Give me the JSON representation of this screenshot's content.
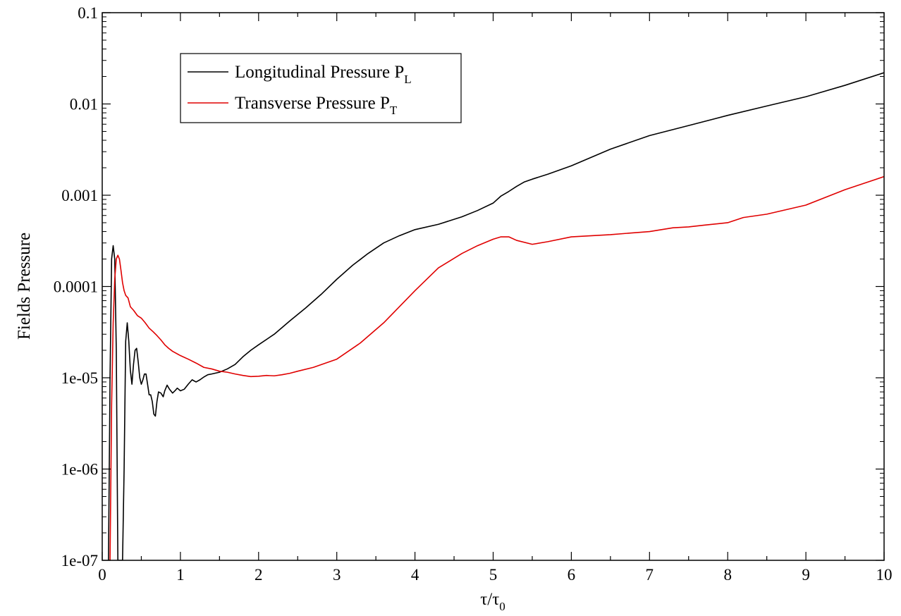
{
  "chart_data": {
    "type": "line",
    "title": "",
    "xlabel": "τ/τ",
    "xlabel_sub": "0",
    "ylabel": "Fields Pressure",
    "xlim": [
      0,
      10
    ],
    "ylim": [
      1e-07,
      0.1
    ],
    "yscale": "log",
    "grid": false,
    "legend_position": "top-left",
    "x_ticks": [
      0,
      1,
      2,
      3,
      4,
      5,
      6,
      7,
      8,
      9,
      10
    ],
    "x_tick_labels": [
      "0",
      "1",
      "2",
      "3",
      "4",
      "5",
      "6",
      "7",
      "8",
      "9",
      "10"
    ],
    "y_ticks": [
      1e-07,
      1e-06,
      1e-05,
      0.0001,
      0.001,
      0.01,
      0.1
    ],
    "y_tick_labels": [
      "1e-07",
      "1e-06",
      "1e-05",
      "0.0001",
      "0.001",
      "0.01",
      "0.1"
    ],
    "series": [
      {
        "name": "Longitudinal Pressure P",
        "name_sub": "L",
        "color": "#000000",
        "x": [
          0.08,
          0.1,
          0.12,
          0.14,
          0.16,
          0.18,
          0.2,
          0.22,
          0.24,
          0.26,
          0.28,
          0.3,
          0.32,
          0.34,
          0.36,
          0.38,
          0.4,
          0.42,
          0.44,
          0.46,
          0.48,
          0.5,
          0.52,
          0.54,
          0.56,
          0.58,
          0.6,
          0.62,
          0.64,
          0.66,
          0.68,
          0.7,
          0.72,
          0.75,
          0.78,
          0.8,
          0.83,
          0.86,
          0.9,
          0.93,
          0.96,
          1.0,
          1.05,
          1.1,
          1.15,
          1.2,
          1.25,
          1.3,
          1.35,
          1.4,
          1.5,
          1.6,
          1.7,
          1.8,
          1.9,
          2.0,
          2.2,
          2.4,
          2.6,
          2.8,
          3.0,
          3.2,
          3.4,
          3.6,
          3.8,
          4.0,
          4.3,
          4.6,
          4.8,
          5.0,
          5.1,
          5.2,
          5.3,
          5.4,
          5.5,
          5.7,
          6.0,
          6.5,
          7.0,
          7.5,
          8.0,
          8.5,
          9.0,
          9.5,
          10.0
        ],
        "values": [
          1e-07,
          1e-05,
          0.0002,
          0.00028,
          0.0002,
          2e-05,
          1e-07,
          1e-07,
          1e-07,
          1e-07,
          1e-06,
          2.5e-05,
          4e-05,
          2.5e-05,
          1.2e-05,
          8.5e-06,
          1.4e-05,
          2e-05,
          2.1e-05,
          1.5e-05,
          1e-05,
          8.5e-06,
          9.5e-06,
          1.1e-05,
          1.1e-05,
          8.5e-06,
          6.5e-06,
          6.5e-06,
          5.5e-06,
          4e-06,
          3.8e-06,
          5.5e-06,
          7e-06,
          6.8e-06,
          6.2e-06,
          7.2e-06,
          8.3e-06,
          7.5e-06,
          6.8e-06,
          7.2e-06,
          7.7e-06,
          7.2e-06,
          7.5e-06,
          8.5e-06,
          9.5e-06,
          9e-06,
          9.5e-06,
          1.02e-05,
          1.08e-05,
          1.1e-05,
          1.15e-05,
          1.25e-05,
          1.4e-05,
          1.7e-05,
          2e-05,
          2.3e-05,
          3e-05,
          4.2e-05,
          5.8e-05,
          8.2e-05,
          0.00012,
          0.00017,
          0.00023,
          0.0003,
          0.00036,
          0.00042,
          0.00048,
          0.00058,
          0.00068,
          0.00082,
          0.00098,
          0.0011,
          0.00125,
          0.0014,
          0.0015,
          0.0017,
          0.0021,
          0.0032,
          0.0045,
          0.0058,
          0.0075,
          0.0095,
          0.012,
          0.016,
          0.022
        ]
      },
      {
        "name": "Transverse Pressure P",
        "name_sub": "T",
        "color": "#e00000",
        "x": [
          0.1,
          0.12,
          0.14,
          0.16,
          0.18,
          0.2,
          0.22,
          0.24,
          0.26,
          0.28,
          0.3,
          0.33,
          0.36,
          0.4,
          0.45,
          0.5,
          0.55,
          0.6,
          0.65,
          0.7,
          0.75,
          0.8,
          0.85,
          0.9,
          1.0,
          1.1,
          1.2,
          1.3,
          1.4,
          1.5,
          1.6,
          1.7,
          1.8,
          1.9,
          2.0,
          2.1,
          2.2,
          2.3,
          2.4,
          2.5,
          2.7,
          3.0,
          3.3,
          3.6,
          4.0,
          4.3,
          4.6,
          4.8,
          5.0,
          5.1,
          5.2,
          5.3,
          5.5,
          5.7,
          6.0,
          6.5,
          7.0,
          7.3,
          7.5,
          7.7,
          8.0,
          8.2,
          8.5,
          9.0,
          9.5,
          10.0
        ],
        "values": [
          1e-07,
          5e-06,
          4e-05,
          0.00012,
          0.0002,
          0.00022,
          0.0002,
          0.00015,
          0.00011,
          9e-05,
          8e-05,
          7.5e-05,
          6e-05,
          5.5e-05,
          4.8e-05,
          4.5e-05,
          4e-05,
          3.5e-05,
          3.2e-05,
          2.9e-05,
          2.6e-05,
          2.3e-05,
          2.1e-05,
          1.95e-05,
          1.75e-05,
          1.6e-05,
          1.45e-05,
          1.3e-05,
          1.25e-05,
          1.18e-05,
          1.15e-05,
          1.1e-05,
          1.06e-05,
          1.03e-05,
          1.04e-05,
          1.06e-05,
          1.05e-05,
          1.08e-05,
          1.12e-05,
          1.18e-05,
          1.3e-05,
          1.6e-05,
          2.4e-05,
          4e-05,
          9e-05,
          0.00016,
          0.00023,
          0.00028,
          0.00033,
          0.00035,
          0.00035,
          0.00032,
          0.00029,
          0.00031,
          0.00035,
          0.00037,
          0.0004,
          0.00044,
          0.00045,
          0.00047,
          0.0005,
          0.00057,
          0.00062,
          0.00078,
          0.00115,
          0.0016
        ]
      }
    ]
  }
}
